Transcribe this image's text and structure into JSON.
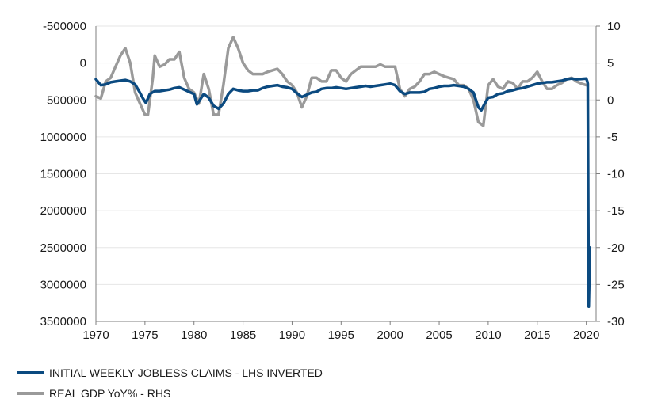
{
  "chart_data": {
    "type": "line",
    "title": "",
    "xlabel": "",
    "ylabel_left": "",
    "ylabel_right": "",
    "x_ticks": [
      "1970",
      "1975",
      "1980",
      "1985",
      "1990",
      "1995",
      "2000",
      "2005",
      "2010",
      "2015",
      "2020"
    ],
    "xlim": [
      1970,
      2021
    ],
    "y_left": {
      "inverted": true,
      "ylim": [
        -500000,
        3500000
      ],
      "ticks": [
        "-500000",
        "0",
        "500000",
        "1000000",
        "1500000",
        "2000000",
        "2500000",
        "3000000",
        "3500000"
      ]
    },
    "y_right": {
      "ylim": [
        -30,
        10
      ],
      "ticks": [
        "10",
        "5",
        "0",
        "-5",
        "-10",
        "-15",
        "-20",
        "-25",
        "-30"
      ]
    },
    "grid": true,
    "legend_position": "bottom-left",
    "series": [
      {
        "name": "INITIAL WEEKLY JOBLESS CLAIMS - LHS INVERTED",
        "axis": "left",
        "color": "#0b4a80",
        "x": [
          1970.0,
          1970.5,
          1971.0,
          1971.5,
          1972.0,
          1972.5,
          1973.0,
          1973.5,
          1974.0,
          1974.4,
          1974.8,
          1975.1,
          1975.5,
          1976.0,
          1976.5,
          1977.0,
          1977.5,
          1978.0,
          1978.5,
          1979.0,
          1979.5,
          1980.0,
          1980.3,
          1980.6,
          1981.0,
          1981.5,
          1982.0,
          1982.5,
          1983.0,
          1983.5,
          1984.0,
          1984.5,
          1985.0,
          1985.5,
          1986.0,
          1986.5,
          1987.0,
          1987.5,
          1988.0,
          1988.5,
          1989.0,
          1989.5,
          1990.0,
          1990.5,
          1991.0,
          1991.5,
          1992.0,
          1992.5,
          1993.0,
          1993.5,
          1994.0,
          1994.5,
          1995.0,
          1995.5,
          1996.0,
          1996.5,
          1997.0,
          1997.5,
          1998.0,
          1998.5,
          1999.0,
          1999.5,
          2000.0,
          2000.5,
          2001.0,
          2001.5,
          2002.0,
          2002.5,
          2003.0,
          2003.5,
          2004.0,
          2004.5,
          2005.0,
          2005.5,
          2006.0,
          2006.5,
          2007.0,
          2007.5,
          2008.0,
          2008.5,
          2009.0,
          2009.3,
          2009.6,
          2010.0,
          2010.5,
          2011.0,
          2011.5,
          2012.0,
          2012.5,
          2013.0,
          2013.5,
          2014.0,
          2014.5,
          2015.0,
          2015.5,
          2016.0,
          2016.5,
          2017.0,
          2017.5,
          2018.0,
          2018.5,
          2019.0,
          2019.5,
          2020.0,
          2020.1,
          2020.15,
          2020.2,
          2020.25,
          2020.3,
          2020.35
        ],
        "y": [
          220000,
          300000,
          290000,
          260000,
          250000,
          240000,
          230000,
          250000,
          290000,
          380000,
          480000,
          540000,
          420000,
          380000,
          380000,
          370000,
          360000,
          340000,
          330000,
          360000,
          390000,
          420000,
          560000,
          500000,
          420000,
          470000,
          580000,
          620000,
          550000,
          420000,
          350000,
          370000,
          380000,
          380000,
          370000,
          370000,
          340000,
          320000,
          310000,
          300000,
          320000,
          330000,
          350000,
          410000,
          460000,
          430000,
          400000,
          390000,
          350000,
          340000,
          340000,
          330000,
          340000,
          350000,
          340000,
          330000,
          320000,
          310000,
          320000,
          310000,
          300000,
          290000,
          280000,
          300000,
          380000,
          420000,
          400000,
          400000,
          400000,
          390000,
          350000,
          340000,
          320000,
          310000,
          310000,
          300000,
          310000,
          320000,
          350000,
          400000,
          600000,
          640000,
          560000,
          470000,
          460000,
          420000,
          410000,
          380000,
          370000,
          350000,
          340000,
          320000,
          300000,
          280000,
          270000,
          260000,
          260000,
          250000,
          240000,
          220000,
          210000,
          220000,
          215000,
          211000,
          250000,
          282000,
          2010000,
          3300000,
          3000000,
          2500000
        ]
      },
      {
        "name": "REAL GDP YoY% - RHS",
        "axis": "right",
        "color": "#9a9a9a",
        "x": [
          1970.0,
          1970.5,
          1971.0,
          1971.5,
          1972.0,
          1972.5,
          1973.0,
          1973.5,
          1974.0,
          1974.5,
          1975.0,
          1975.3,
          1975.8,
          1976.0,
          1976.5,
          1977.0,
          1977.5,
          1978.0,
          1978.5,
          1979.0,
          1979.5,
          1980.0,
          1980.5,
          1981.0,
          1981.5,
          1982.0,
          1982.5,
          1983.0,
          1983.5,
          1984.0,
          1984.5,
          1985.0,
          1985.5,
          1986.0,
          1986.5,
          1987.0,
          1987.5,
          1988.0,
          1988.5,
          1989.0,
          1989.5,
          1990.0,
          1990.5,
          1991.0,
          1991.5,
          1992.0,
          1992.5,
          1993.0,
          1993.5,
          1994.0,
          1994.5,
          1995.0,
          1995.5,
          1996.0,
          1996.5,
          1997.0,
          1997.5,
          1998.0,
          1998.5,
          1999.0,
          1999.5,
          2000.0,
          2000.5,
          2001.0,
          2001.5,
          2002.0,
          2002.5,
          2003.0,
          2003.5,
          2004.0,
          2004.5,
          2005.0,
          2005.5,
          2006.0,
          2006.5,
          2007.0,
          2007.5,
          2008.0,
          2008.5,
          2009.0,
          2009.5,
          2010.0,
          2010.5,
          2011.0,
          2011.5,
          2012.0,
          2012.5,
          2013.0,
          2013.5,
          2014.0,
          2014.5,
          2015.0,
          2015.5,
          2016.0,
          2016.5,
          2017.0,
          2017.5,
          2018.0,
          2018.5,
          2019.0,
          2019.5,
          2020.0
        ],
        "y": [
          0.5,
          0.2,
          2.5,
          3.0,
          4.5,
          6.0,
          7.0,
          5.0,
          1.0,
          -0.5,
          -2.0,
          -2.0,
          3.0,
          6.0,
          4.5,
          4.8,
          5.5,
          5.5,
          6.5,
          3.0,
          1.5,
          1.0,
          -0.5,
          3.5,
          1.5,
          -2.0,
          -2.0,
          2.0,
          7.0,
          8.5,
          7.0,
          5.0,
          4.0,
          3.5,
          3.5,
          3.5,
          3.8,
          4.0,
          4.2,
          3.5,
          2.5,
          2.0,
          1.0,
          -1.0,
          0.5,
          3.0,
          3.0,
          2.5,
          2.5,
          4.0,
          4.0,
          3.0,
          2.5,
          3.5,
          4.0,
          4.5,
          4.5,
          4.5,
          4.5,
          4.8,
          4.5,
          4.5,
          4.5,
          1.5,
          0.5,
          1.5,
          1.8,
          2.5,
          3.5,
          3.5,
          3.8,
          3.5,
          3.2,
          3.0,
          2.8,
          2.0,
          2.0,
          1.5,
          0.0,
          -3.0,
          -3.5,
          2.0,
          2.8,
          1.8,
          1.5,
          2.5,
          2.3,
          1.5,
          2.5,
          2.5,
          3.0,
          3.8,
          2.5,
          1.5,
          1.5,
          2.0,
          2.3,
          2.8,
          3.0,
          2.5,
          2.2,
          2.0
        ]
      }
    ]
  }
}
